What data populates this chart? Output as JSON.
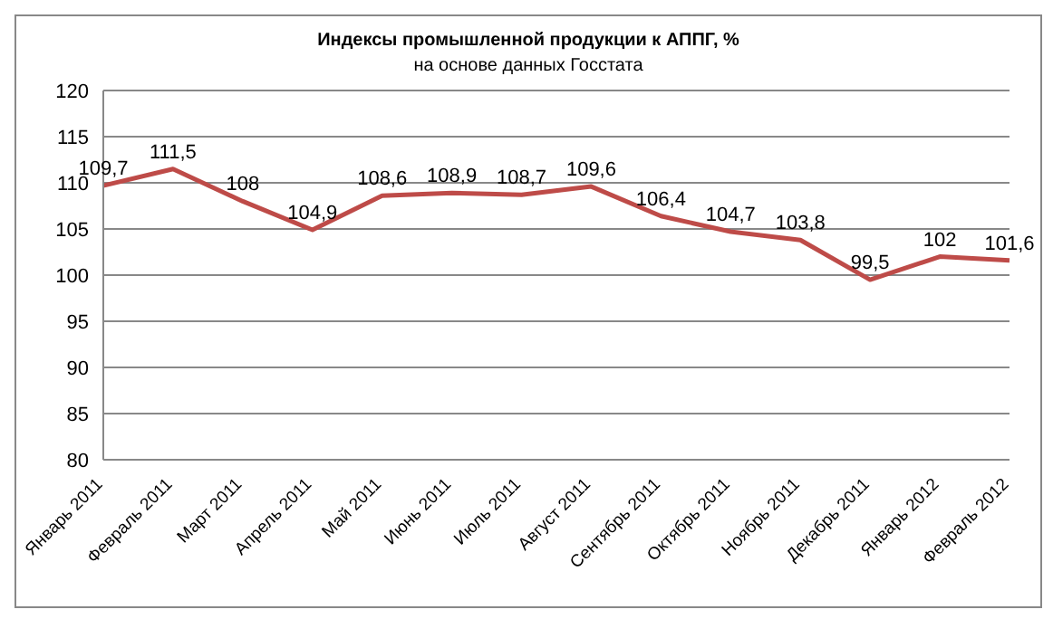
{
  "chart_data": {
    "type": "line",
    "title": "Индексы промышленной продукции к АППГ, %",
    "subtitle": "на основе данных Госстата",
    "categories": [
      "Январь 2011",
      "Февраль 2011",
      "Март 2011",
      "Апрель 2011",
      "Май 2011",
      "Июнь 2011",
      "Июль 2011",
      "Август 2011",
      "Сентябрь 2011",
      "Октябрь 2011",
      "Ноябрь 2011",
      "Декабрь 2011",
      "Январь 2012",
      "Февраль 2012"
    ],
    "series": [
      {
        "color": "#be4b48",
        "values": [
          109.7,
          111.5,
          108,
          104.9,
          108.6,
          108.9,
          108.7,
          109.6,
          106.4,
          104.7,
          103.8,
          99.5,
          102,
          101.6
        ],
        "value_labels": [
          "109,7",
          "111,5",
          "108",
          "104,9",
          "108,6",
          "108,9",
          "108,7",
          "109,6",
          "106,4",
          "104,7",
          "103,8",
          "99,5",
          "102",
          "101,6"
        ]
      }
    ],
    "ylim": [
      80,
      120
    ],
    "yticks": [
      80,
      85,
      90,
      95,
      100,
      105,
      110,
      115,
      120
    ],
    "grid": "y",
    "legend": false,
    "marker": "none",
    "line_style": "solid"
  }
}
